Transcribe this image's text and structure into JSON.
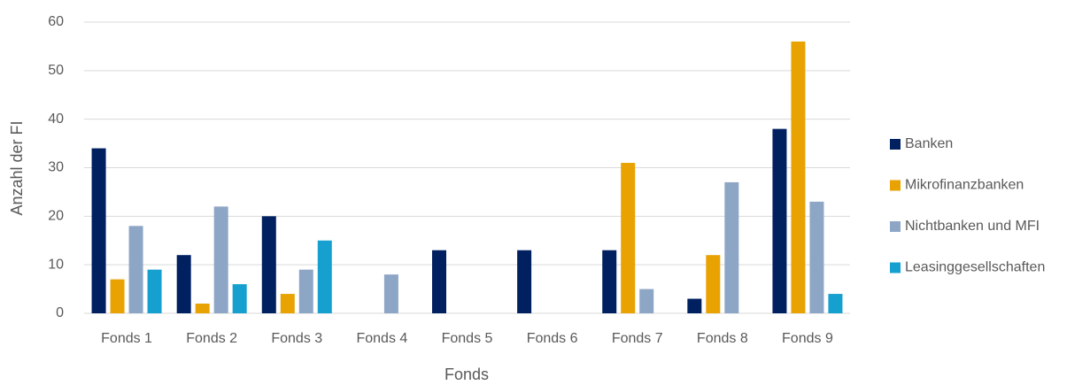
{
  "chart_data": {
    "type": "bar",
    "x_label": "Fonds",
    "y_label": "Anzahl der FI",
    "categories": [
      "Fonds 1",
      "Fonds 2",
      "Fonds 3",
      "Fonds 4",
      "Fonds 5",
      "Fonds 6",
      "Fonds 7",
      "Fonds 8",
      "Fonds 9"
    ],
    "series": [
      {
        "name": "Banken",
        "color": "#002060",
        "values": [
          34,
          12,
          20,
          0,
          13,
          13,
          13,
          3,
          38
        ]
      },
      {
        "name": "Mikrofinanzbanken",
        "color": "#e8a202",
        "values": [
          7,
          2,
          4,
          0,
          0,
          0,
          31,
          12,
          56
        ]
      },
      {
        "name": "Nichtbanken und MFI",
        "color": "#8ea6c6",
        "values": [
          18,
          22,
          9,
          8,
          0,
          0,
          5,
          27,
          23
        ]
      },
      {
        "name": "Leasinggesellschaften",
        "color": "#16a0cf",
        "values": [
          9,
          6,
          15,
          0,
          0,
          0,
          0,
          0,
          4
        ]
      }
    ],
    "ylim": [
      0,
      60
    ],
    "yticks": [
      0,
      10,
      20,
      30,
      40,
      50,
      60
    ],
    "grid": true,
    "legend": "right"
  }
}
